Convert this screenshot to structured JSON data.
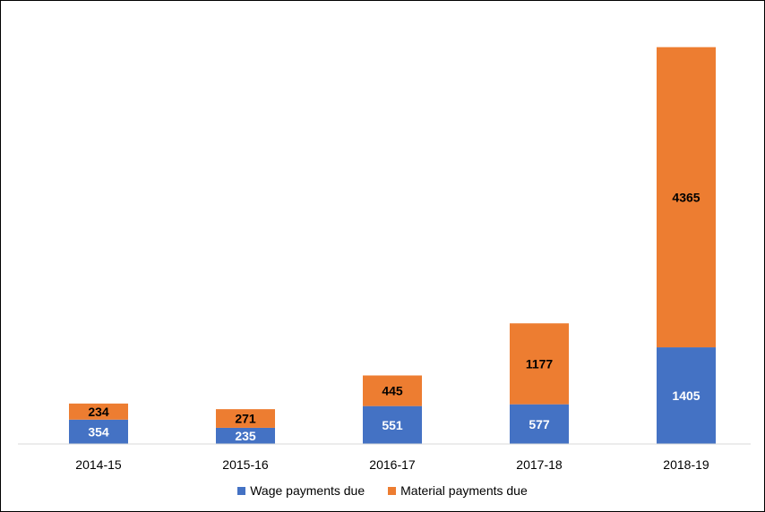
{
  "chart_data": {
    "type": "bar",
    "stacked": true,
    "categories": [
      "2014-15",
      "2015-16",
      "2016-17",
      "2017-18",
      "2018-19"
    ],
    "series": [
      {
        "name": "Wage payments due",
        "color": "#4472C4",
        "values": [
          354,
          235,
          551,
          577,
          1405
        ]
      },
      {
        "name": "Material payments due",
        "color": "#ED7D31",
        "values": [
          234,
          271,
          445,
          1177,
          4365
        ]
      }
    ],
    "title": "",
    "xlabel": "",
    "ylabel": "",
    "ylim": [
      0,
      6000
    ],
    "grid": false,
    "legend_position": "bottom"
  }
}
